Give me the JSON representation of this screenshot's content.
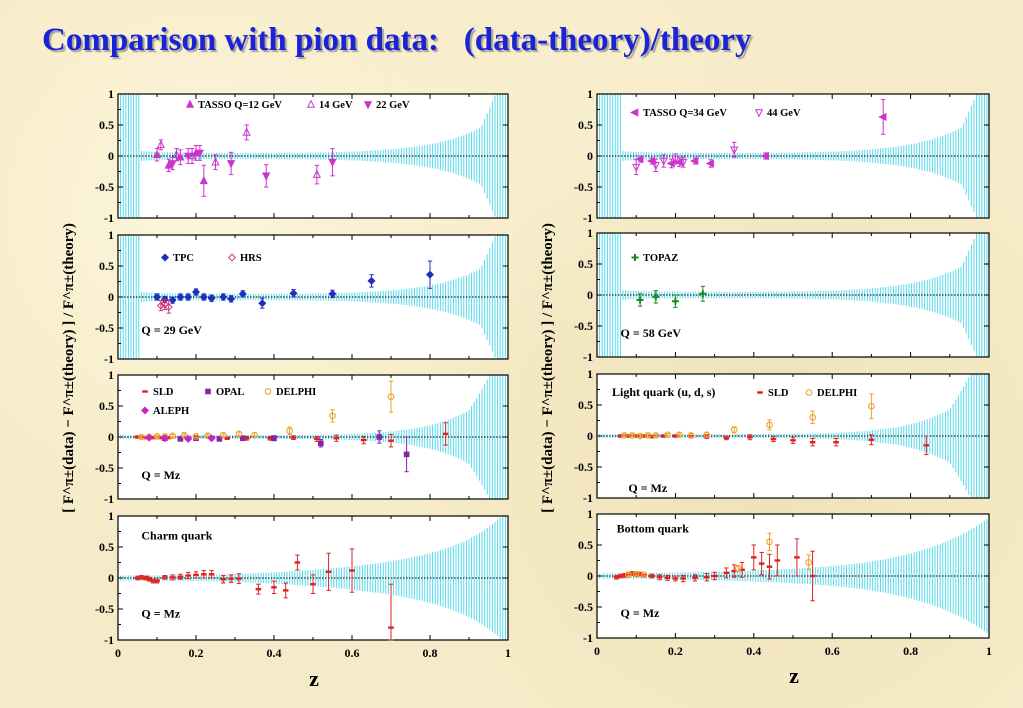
{
  "title": "Comparison with pion data:   (data-theory)/theory",
  "colors": {
    "band": "#55d8ea",
    "tasso": "#cc33cc",
    "tpc": "#1f2fb8",
    "hrs": "#cc3377",
    "topaz": "#1e8a1e",
    "sld": "#dd2222",
    "opal": "#8822aa",
    "delphi": "#f0a030",
    "aleph": "#cc22cc"
  },
  "axes": {
    "xlabel": "z",
    "ylabel_left": "[ F^π±(data) − F^π±(theory) ] / F^π±(theory)",
    "ylabel_right": "[ F^π±(data) − F^π±(theory) ] / F^π±(theory)",
    "x_ticks": [
      "0",
      "0.2",
      "0.4",
      "0.6",
      "0.8",
      "1"
    ],
    "y_ticks": [
      "1",
      "0.5",
      "0",
      "-0.5",
      "-1"
    ]
  },
  "chart_data": [
    {
      "type": "scatter",
      "xlim": [
        0,
        1
      ],
      "ylim": [
        -1,
        1
      ],
      "label": "",
      "band": "open",
      "legend": [
        "TASSO  Q=12 GeV",
        "14 GeV",
        "22 GeV"
      ],
      "series": [
        {
          "name": "TASSO  Q=12 GeV",
          "marker": "tri-up-filled",
          "color": "#cc33cc",
          "x": [
            0.1,
            0.13,
            0.16,
            0.2,
            0.22
          ],
          "y": [
            0.02,
            -0.15,
            -0.02,
            0.05,
            -0.4
          ],
          "err": [
            0.1,
            0.1,
            0.12,
            0.12,
            0.25
          ]
        },
        {
          "name": "14 GeV",
          "marker": "tri-up-open",
          "color": "#cc33cc",
          "x": [
            0.11,
            0.15,
            0.19,
            0.25,
            0.33,
            0.51
          ],
          "y": [
            0.18,
            0.02,
            0.0,
            -0.1,
            0.38,
            -0.3
          ],
          "err": [
            0.08,
            0.1,
            0.12,
            0.12,
            0.12,
            0.15
          ]
        },
        {
          "name": "22 GeV",
          "marker": "tri-down-filled",
          "color": "#cc33cc",
          "x": [
            0.14,
            0.18,
            0.21,
            0.29,
            0.38,
            0.55
          ],
          "y": [
            -0.12,
            0.0,
            0.05,
            -0.12,
            -0.32,
            -0.1
          ],
          "err": [
            0.1,
            0.12,
            0.12,
            0.18,
            0.18,
            0.22
          ]
        }
      ]
    },
    {
      "type": "scatter",
      "xlim": [
        0,
        1
      ],
      "ylim": [
        -1,
        1
      ],
      "label": "Q = 29 GeV",
      "band": "open",
      "legend": [
        "TPC",
        "HRS"
      ],
      "series": [
        {
          "name": "TPC",
          "marker": "diamond-filled",
          "color": "#1f2fb8",
          "x": [
            0.1,
            0.12,
            0.14,
            0.16,
            0.18,
            0.2,
            0.22,
            0.24,
            0.27,
            0.29,
            0.32,
            0.37,
            0.45,
            0.55,
            0.65,
            0.8
          ],
          "y": [
            0.0,
            -0.04,
            -0.05,
            0.0,
            0.0,
            0.08,
            0.0,
            -0.02,
            0.0,
            -0.03,
            0.05,
            -0.1,
            0.06,
            0.05,
            0.26,
            0.36
          ],
          "err": [
            0.05,
            0.05,
            0.05,
            0.05,
            0.05,
            0.05,
            0.05,
            0.05,
            0.05,
            0.05,
            0.05,
            0.08,
            0.06,
            0.06,
            0.1,
            0.22
          ]
        },
        {
          "name": "HRS",
          "marker": "diamond-open",
          "color": "#cc3377",
          "x": [
            0.11,
            0.12,
            0.13
          ],
          "y": [
            -0.14,
            -0.12,
            -0.16
          ],
          "err": [
            0.08,
            0.08,
            0.1
          ]
        }
      ]
    },
    {
      "type": "scatter",
      "xlim": [
        0,
        1
      ],
      "ylim": [
        -1,
        1
      ],
      "label": "Q = Mz",
      "band": "light",
      "legend": [
        "SLD",
        "OPAL",
        "DELPHI",
        "ALEPH"
      ],
      "series": [
        {
          "name": "SLD",
          "marker": "dash",
          "color": "#dd2222",
          "x": [
            0.05,
            0.07,
            0.09,
            0.11,
            0.13,
            0.16,
            0.2,
            0.24,
            0.28,
            0.33,
            0.39,
            0.45,
            0.51,
            0.56,
            0.63,
            0.7,
            0.84
          ],
          "y": [
            0.0,
            -0.01,
            -0.01,
            -0.01,
            -0.01,
            -0.02,
            -0.01,
            -0.01,
            -0.02,
            -0.02,
            -0.02,
            -0.01,
            -0.03,
            -0.02,
            -0.05,
            -0.06,
            0.05
          ],
          "err": [
            0.02,
            0.02,
            0.02,
            0.02,
            0.02,
            0.02,
            0.02,
            0.02,
            0.02,
            0.03,
            0.03,
            0.03,
            0.04,
            0.05,
            0.06,
            0.1,
            0.18
          ]
        },
        {
          "name": "OPAL",
          "marker": "square",
          "color": "#8822aa",
          "x": [
            0.12,
            0.16,
            0.2,
            0.26,
            0.32,
            0.4,
            0.52,
            0.67,
            0.74
          ],
          "y": [
            -0.02,
            -0.03,
            -0.02,
            -0.03,
            -0.02,
            -0.02,
            -0.1,
            0.0,
            -0.28
          ],
          "err": [
            0.03,
            0.03,
            0.03,
            0.03,
            0.03,
            0.04,
            0.06,
            0.1,
            0.28
          ]
        },
        {
          "name": "DELPHI",
          "marker": "circle-open",
          "color": "#f0a030",
          "x": [
            0.06,
            0.08,
            0.1,
            0.12,
            0.14,
            0.17,
            0.2,
            0.23,
            0.27,
            0.31,
            0.35,
            0.44,
            0.55,
            0.7
          ],
          "y": [
            0.0,
            0.0,
            0.01,
            0.01,
            0.02,
            0.03,
            0.01,
            0.02,
            0.03,
            0.05,
            0.03,
            0.1,
            0.34,
            0.65
          ],
          "err": [
            0.02,
            0.02,
            0.02,
            0.02,
            0.02,
            0.02,
            0.02,
            0.03,
            0.03,
            0.03,
            0.04,
            0.06,
            0.1,
            0.25
          ]
        },
        {
          "name": "ALEPH",
          "marker": "diamond-filled",
          "color": "#cc22cc",
          "x": [
            0.08,
            0.12,
            0.18,
            0.24
          ],
          "y": [
            -0.01,
            -0.02,
            -0.03,
            -0.02
          ],
          "err": [
            0.02,
            0.02,
            0.03,
            0.03
          ]
        }
      ]
    },
    {
      "type": "scatter",
      "xlim": [
        0,
        1
      ],
      "ylim": [
        -1,
        1
      ],
      "label": "Q = Mz",
      "title": "Charm quark",
      "band": "charm",
      "legend": [],
      "series": [
        {
          "name": "",
          "marker": "dash",
          "color": "#dd2222",
          "x": [
            0.05,
            0.06,
            0.07,
            0.075,
            0.08,
            0.09,
            0.1,
            0.12,
            0.14,
            0.16,
            0.18,
            0.2,
            0.22,
            0.24,
            0.27,
            0.29,
            0.31,
            0.36,
            0.4,
            0.43,
            0.46,
            0.5,
            0.54,
            0.6,
            0.7
          ],
          "y": [
            0.0,
            0.01,
            0.0,
            0.0,
            -0.02,
            -0.05,
            -0.05,
            0.01,
            0.01,
            0.02,
            0.04,
            0.05,
            0.06,
            0.06,
            -0.02,
            -0.01,
            -0.01,
            -0.18,
            -0.15,
            -0.2,
            0.25,
            -0.1,
            0.1,
            0.12,
            -0.8
          ],
          "err": [
            0.03,
            0.03,
            0.03,
            0.03,
            0.03,
            0.03,
            0.03,
            0.03,
            0.04,
            0.04,
            0.05,
            0.05,
            0.06,
            0.06,
            0.06,
            0.06,
            0.08,
            0.08,
            0.1,
            0.12,
            0.12,
            0.15,
            0.3,
            0.35,
            0.7
          ]
        }
      ]
    },
    {
      "type": "scatter",
      "xlim": [
        0,
        1
      ],
      "ylim": [
        -1,
        1
      ],
      "label": "",
      "band": "open",
      "legend": [
        "TASSO  Q=34 GeV",
        "44 GeV"
      ],
      "series": [
        {
          "name": "TASSO  Q=34 GeV",
          "marker": "tri-left-filled",
          "color": "#cc33cc",
          "x": [
            0.11,
            0.14,
            0.19,
            0.21,
            0.25,
            0.29,
            0.43,
            0.73
          ],
          "y": [
            -0.05,
            -0.08,
            -0.12,
            -0.1,
            -0.08,
            -0.12,
            0.0,
            0.63
          ],
          "err": [
            0.05,
            0.05,
            0.07,
            0.07,
            0.05,
            0.06,
            0.05,
            0.28
          ]
        },
        {
          "name": "44 GeV",
          "marker": "tri-down-open",
          "color": "#cc33cc",
          "x": [
            0.1,
            0.15,
            0.17,
            0.2,
            0.22,
            0.35
          ],
          "y": [
            -0.18,
            -0.15,
            -0.08,
            -0.05,
            -0.1,
            0.1
          ],
          "err": [
            0.12,
            0.1,
            0.1,
            0.08,
            0.08,
            0.12
          ]
        }
      ]
    },
    {
      "type": "scatter",
      "xlim": [
        0,
        1
      ],
      "ylim": [
        -1,
        1
      ],
      "label": "Q = 58 GeV",
      "band": "open",
      "legend": [
        "TOPAZ"
      ],
      "series": [
        {
          "name": "TOPAZ",
          "marker": "plus",
          "color": "#1e8a1e",
          "x": [
            0.11,
            0.15,
            0.2,
            0.27
          ],
          "y": [
            -0.08,
            -0.03,
            -0.1,
            0.02
          ],
          "err": [
            0.1,
            0.1,
            0.1,
            0.12
          ]
        }
      ]
    },
    {
      "type": "scatter",
      "xlim": [
        0,
        1
      ],
      "ylim": [
        -1,
        1
      ],
      "label": "Q = Mz",
      "band": "light",
      "legend": [
        "Light quark (u, d, s)",
        "SLD",
        "DELPHI"
      ],
      "series": [
        {
          "name": "SLD",
          "marker": "dash",
          "color": "#dd2222",
          "x": [
            0.06,
            0.08,
            0.1,
            0.12,
            0.14,
            0.17,
            0.2,
            0.24,
            0.28,
            0.33,
            0.39,
            0.45,
            0.5,
            0.55,
            0.61,
            0.7,
            0.84
          ],
          "y": [
            0.0,
            0.0,
            0.0,
            0.0,
            -0.01,
            0.0,
            0.0,
            -0.01,
            -0.01,
            -0.03,
            -0.02,
            -0.05,
            -0.07,
            -0.1,
            -0.1,
            -0.06,
            -0.15
          ],
          "err": [
            0.02,
            0.02,
            0.02,
            0.02,
            0.02,
            0.02,
            0.02,
            0.02,
            0.03,
            0.03,
            0.04,
            0.04,
            0.05,
            0.06,
            0.06,
            0.08,
            0.15
          ]
        },
        {
          "name": "DELPHI",
          "marker": "circle-open",
          "color": "#f0a030",
          "x": [
            0.07,
            0.09,
            0.11,
            0.13,
            0.15,
            0.18,
            0.21,
            0.24,
            0.28,
            0.35,
            0.44,
            0.55,
            0.7
          ],
          "y": [
            0.01,
            0.01,
            0.0,
            0.01,
            0.01,
            0.02,
            0.02,
            0.01,
            0.02,
            0.1,
            0.18,
            0.3,
            0.48
          ],
          "err": [
            0.02,
            0.02,
            0.02,
            0.02,
            0.02,
            0.02,
            0.03,
            0.03,
            0.04,
            0.05,
            0.08,
            0.1,
            0.2
          ]
        }
      ]
    },
    {
      "type": "scatter",
      "xlim": [
        0,
        1
      ],
      "ylim": [
        -1,
        1
      ],
      "label": "Q = Mz",
      "title": "Bottom quark",
      "band": "bottom",
      "legend": [],
      "series": [
        {
          "name": "",
          "marker": "dash",
          "color": "#dd2222",
          "x": [
            0.05,
            0.06,
            0.07,
            0.08,
            0.09,
            0.1,
            0.11,
            0.12,
            0.14,
            0.16,
            0.18,
            0.2,
            0.22,
            0.25,
            0.28,
            0.3,
            0.33,
            0.35,
            0.37,
            0.4,
            0.42,
            0.44,
            0.46,
            0.51,
            0.55
          ],
          "y": [
            -0.02,
            0.0,
            0.01,
            0.03,
            0.04,
            0.04,
            0.03,
            0.01,
            0.0,
            -0.02,
            -0.03,
            -0.04,
            -0.04,
            -0.03,
            -0.02,
            0.0,
            0.05,
            0.08,
            0.1,
            0.3,
            0.2,
            0.15,
            0.25,
            0.3,
            0.0
          ],
          "err": [
            0.03,
            0.03,
            0.03,
            0.03,
            0.03,
            0.03,
            0.03,
            0.03,
            0.03,
            0.04,
            0.04,
            0.04,
            0.05,
            0.05,
            0.06,
            0.06,
            0.08,
            0.1,
            0.12,
            0.2,
            0.18,
            0.2,
            0.25,
            0.3,
            0.4
          ]
        },
        {
          "name": "",
          "marker": "circle-open",
          "color": "#f0a030",
          "x": [
            0.08,
            0.1,
            0.12,
            0.36,
            0.44,
            0.54
          ],
          "y": [
            0.02,
            0.03,
            0.02,
            0.12,
            0.55,
            0.22
          ],
          "err": [
            0.02,
            0.02,
            0.02,
            0.05,
            0.14,
            0.12
          ]
        }
      ]
    }
  ]
}
